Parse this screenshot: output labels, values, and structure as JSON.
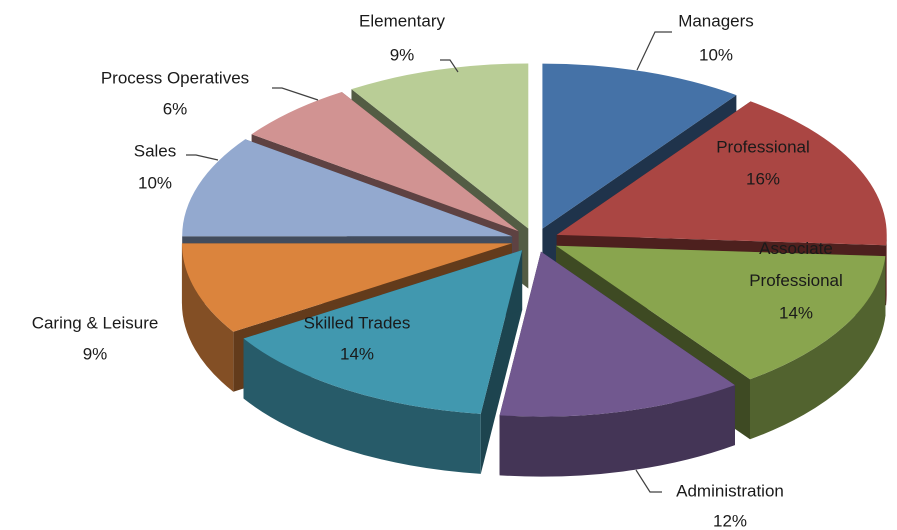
{
  "chart_data": {
    "type": "pie",
    "categories": [
      "Managers",
      "Professional",
      "Associate Professional",
      "Administration",
      "Skilled Trades",
      "Caring & Leisure",
      "Sales",
      "Process Operatives",
      "Elementary"
    ],
    "values": [
      10,
      16,
      14,
      12,
      14,
      9,
      10,
      6,
      9
    ],
    "value_labels": [
      "10%",
      "16%",
      "14%",
      "12%",
      "14%",
      "9%",
      "10%",
      "6%",
      "9%"
    ],
    "colors": [
      "#4572a7",
      "#aa4643",
      "#89a54e",
      "#71588f",
      "#4198af",
      "#db843d",
      "#93a9cf",
      "#d19392",
      "#b9cd96"
    ]
  }
}
